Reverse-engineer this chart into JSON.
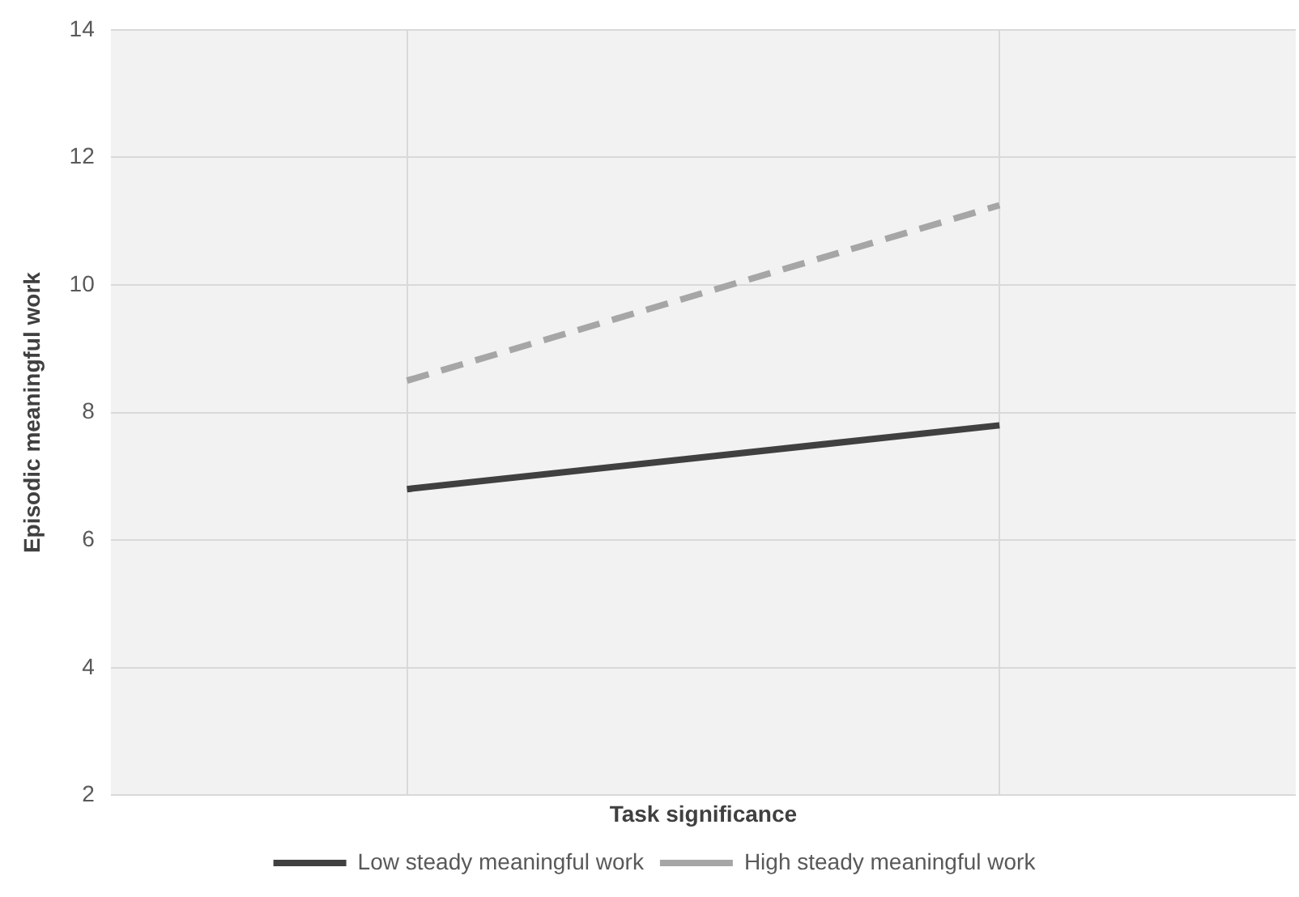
{
  "chart_data": {
    "type": "line",
    "xlabel": "Task significance",
    "ylabel": "Episodic meaningful work",
    "categories": [
      null,
      null
    ],
    "series": [
      {
        "name": "Low steady meaningful work",
        "color": "#404040",
        "line_style": "solid",
        "values": [
          6.8,
          7.8
        ]
      },
      {
        "name": "High steady meaningful work",
        "color": "#a6a6a6",
        "line_style": "dashed",
        "values": [
          8.5,
          11.25
        ]
      }
    ],
    "ylim": [
      2,
      14
    ],
    "yticks": [
      2,
      4,
      6,
      8,
      10,
      12,
      14
    ],
    "grid": true,
    "legend": "bottom",
    "marker": "none",
    "tick_labels": "y"
  }
}
